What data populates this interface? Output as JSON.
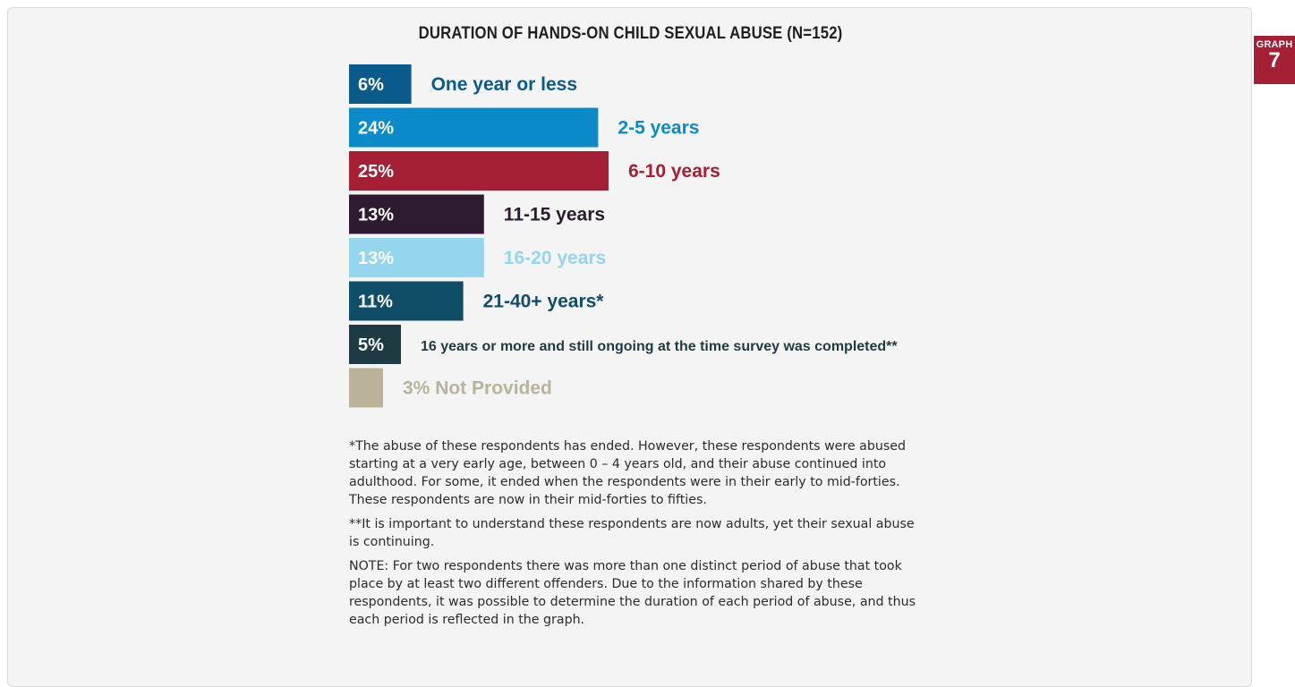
{
  "badge": {
    "word": "GRAPH",
    "number": "7"
  },
  "chart_data": {
    "type": "bar",
    "orientation": "horizontal",
    "title": "DURATION OF HANDS-ON CHILD SEXUAL ABUSE (N=152)",
    "grid": false,
    "categories": [
      "One year or less",
      "2-5 years",
      "6-10 years",
      "11-15 years",
      "16-20 years",
      "21-40+ years*",
      "16 years or more and still ongoing at the time survey was completed**",
      "Not Provided"
    ],
    "values": [
      6,
      24,
      25,
      13,
      13,
      11,
      5,
      3
    ],
    "value_labels": [
      "6%",
      "24%",
      "25%",
      "13%",
      "13%",
      "11%",
      "5%",
      "3%"
    ],
    "colors": [
      "#0b5a8c",
      "#0c8bcb",
      "#a51f35",
      "#2d1a30",
      "#94d6ee",
      "#0f4e66",
      "#1e3b44",
      "#bbb29a"
    ],
    "value_inside": [
      true,
      true,
      true,
      true,
      true,
      true,
      true,
      false
    ]
  },
  "notes": [
    "*The abuse of these respondents has ended. However, these respondents were abused starting at a very early age, between 0 – 4 years old, and their abuse continued into adulthood. For some, it ended when the respondents were in their early to mid-forties. These respondents are now in their mid-forties to fifties.",
    "**It is important to understand these respondents are now adults, yet their sexual abuse is continuing.",
    "NOTE:  For two respondents there was more than one distinct period of abuse that took place by at least two different offenders. Due to the information shared by these respondents, it was possible to determine the duration of each period of abuse, and thus each period is reflected in the graph."
  ]
}
